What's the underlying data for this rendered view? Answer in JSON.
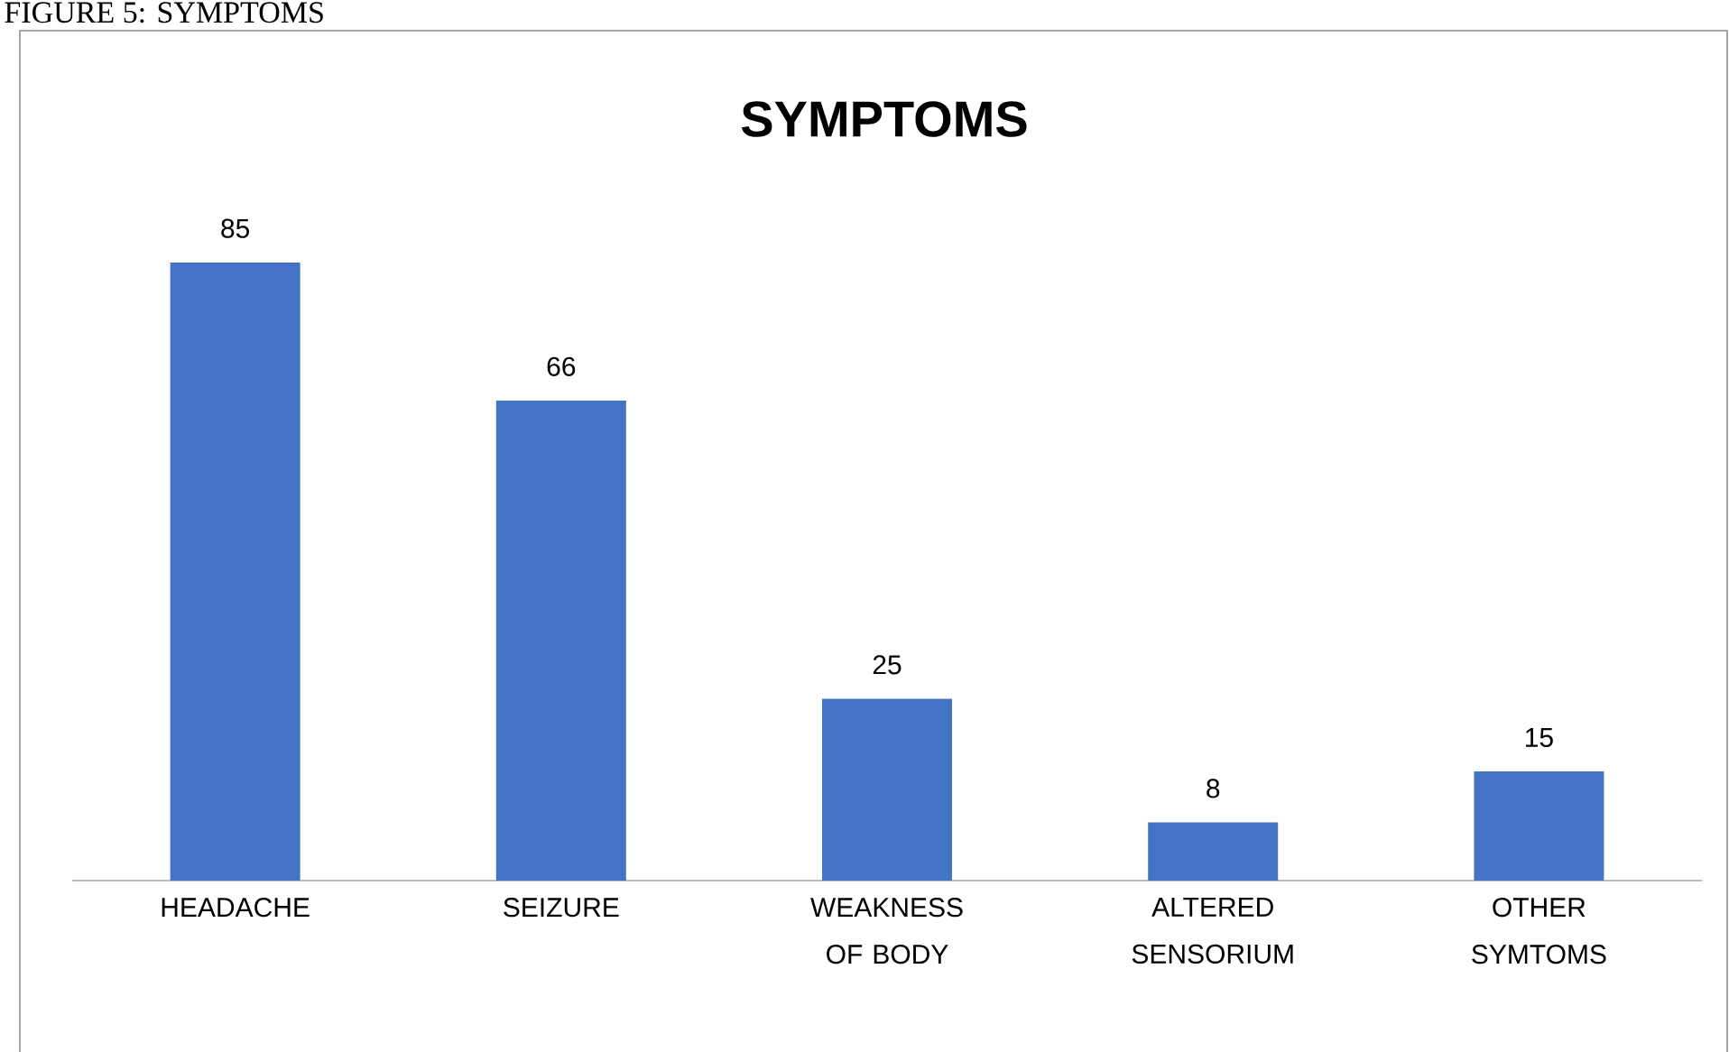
{
  "chart_data": {
    "type": "bar",
    "title": "SYMPTOMS",
    "annotations": [
      "FIGURE 5: SYMPTOMS"
    ],
    "categories": [
      "HEADACHE",
      "SEIZURE",
      "WEAKNESS OF BODY",
      "ALTERED SENSORIUM",
      "OTHER SYMTOMS"
    ],
    "values": [
      85,
      66,
      25,
      8,
      15
    ],
    "color": "#4472c4",
    "data_labels": true
  }
}
